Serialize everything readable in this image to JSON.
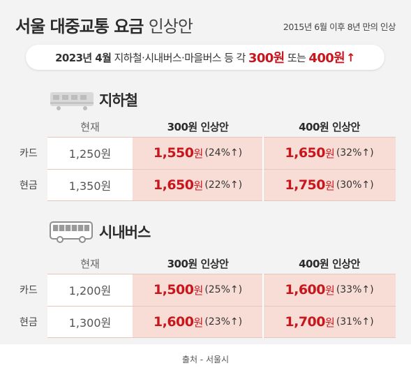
{
  "header": {
    "title_bold": "서울 대중교통 요금",
    "title_light": "인상안",
    "subtitle": "2015년 6월 이후 8년 만의 인상"
  },
  "banner": {
    "date": "2023년 4월",
    "text": "지하철·시내버스·마을버스 등 각",
    "amount1": "300원",
    "connector": "또는",
    "amount2": "400원",
    "arrow": "↑"
  },
  "subway": {
    "label": "지하철",
    "columns": [
      "현재",
      "300원 인상안",
      "400원 인상안"
    ],
    "rows": [
      {
        "type": "카드",
        "current": "1,250원",
        "p300_price": "1,550",
        "p300_unit": "원",
        "p300_pct": "(24%↑)",
        "p400_price": "1,650",
        "p400_unit": "원",
        "p400_pct": "(32%↑)"
      },
      {
        "type": "현금",
        "current": "1,350원",
        "p300_price": "1,650",
        "p300_unit": "원",
        "p300_pct": "(22%↑)",
        "p400_price": "1,750",
        "p400_unit": "원",
        "p400_pct": "(30%↑)"
      }
    ]
  },
  "bus": {
    "label": "시내버스",
    "columns": [
      "현재",
      "300원 인상안",
      "400원 인상안"
    ],
    "rows": [
      {
        "type": "카드",
        "current": "1,200원",
        "p300_price": "1,500",
        "p300_unit": "원",
        "p300_pct": "(25%↑)",
        "p400_price": "1,600",
        "p400_unit": "원",
        "p400_pct": "(33%↑)"
      },
      {
        "type": "현금",
        "current": "1,300원",
        "p300_price": "1,600",
        "p300_unit": "원",
        "p300_pct": "(23%↑)",
        "p400_price": "1,700",
        "p400_unit": "원",
        "p400_pct": "(31%↑)"
      }
    ]
  },
  "footer": {
    "source": "출처 - 서울시"
  }
}
